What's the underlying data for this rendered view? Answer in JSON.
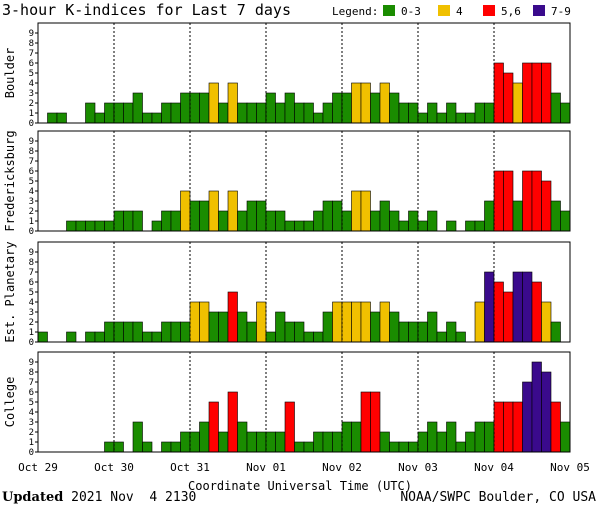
{
  "chart_data": {
    "type": "bar",
    "title": "3-hour K-indices for Last 7 days",
    "legend": {
      "label": "Legend:",
      "items": [
        {
          "label": "0-3",
          "color": "#1a8c00"
        },
        {
          "label": "4",
          "color": "#f0c000"
        },
        {
          "label": "5,6",
          "color": "#ff0000"
        },
        {
          "label": "7-9",
          "color": "#3a0a8c"
        }
      ]
    },
    "xlabel": "Coordinate Universal Time (UTC)",
    "ylim": [
      0,
      9
    ],
    "y_ticks": [
      "0",
      "1",
      "2",
      "3",
      "4",
      "5",
      "6",
      "7",
      "8",
      "9"
    ],
    "x_ticks": [
      "Oct 29",
      "Oct 30",
      "Oct 31",
      "Nov 01",
      "Nov 02",
      "Nov 03",
      "Nov 04",
      "Nov 05"
    ],
    "bars_per_day": 8,
    "panels": [
      {
        "name": "Boulder",
        "values": [
          0,
          1,
          1,
          0,
          0,
          2,
          1,
          2,
          2,
          2,
          3,
          1,
          1,
          2,
          2,
          3,
          3,
          3,
          4,
          2,
          4,
          2,
          2,
          2,
          3,
          2,
          3,
          2,
          2,
          1,
          2,
          3,
          3,
          4,
          4,
          3,
          4,
          3,
          2,
          2,
          1,
          2,
          1,
          2,
          1,
          1,
          2,
          2,
          6,
          5,
          4,
          6,
          6,
          6,
          3,
          2,
          0
        ]
      },
      {
        "name": "Fredericksburg",
        "values": [
          0,
          0,
          0,
          1,
          1,
          1,
          1,
          1,
          2,
          2,
          2,
          0,
          1,
          2,
          2,
          4,
          3,
          3,
          4,
          2,
          4,
          2,
          3,
          3,
          2,
          2,
          1,
          1,
          1,
          2,
          3,
          3,
          2,
          4,
          4,
          2,
          3,
          2,
          1,
          2,
          1,
          2,
          0,
          1,
          0,
          1,
          1,
          3,
          6,
          6,
          3,
          6,
          6,
          5,
          3,
          2,
          0
        ]
      },
      {
        "name": "Est. Planetary",
        "values": [
          1,
          0,
          0,
          1,
          0,
          1,
          1,
          2,
          2,
          2,
          2,
          1,
          1,
          2,
          2,
          2,
          4,
          4,
          3,
          3,
          5,
          3,
          2,
          4,
          1,
          3,
          2,
          2,
          1,
          1,
          3,
          4,
          4,
          4,
          4,
          3,
          4,
          3,
          2,
          2,
          2,
          3,
          1,
          2,
          1,
          0,
          4,
          7,
          6,
          5,
          7,
          7,
          6,
          4,
          2
        ]
      },
      {
        "name": "College",
        "values": [
          0,
          0,
          0,
          0,
          0,
          0,
          0,
          1,
          1,
          0,
          3,
          1,
          0,
          1,
          1,
          2,
          2,
          3,
          5,
          2,
          6,
          3,
          2,
          2,
          2,
          2,
          5,
          1,
          1,
          2,
          2,
          2,
          3,
          3,
          6,
          6,
          2,
          1,
          1,
          1,
          2,
          3,
          2,
          3,
          1,
          2,
          3,
          3,
          5,
          5,
          5,
          7,
          9,
          8,
          5,
          3,
          0
        ]
      }
    ]
  },
  "footer": {
    "updated_label": "Updated",
    "updated_time": "2021 Nov  4 2130",
    "source": "NOAA/SWPC Boulder, CO USA"
  }
}
